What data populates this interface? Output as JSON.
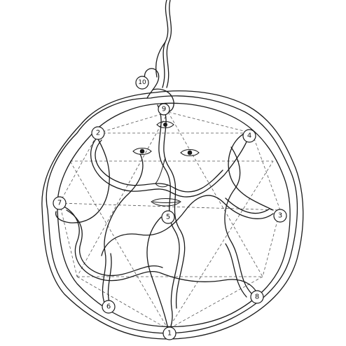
{
  "diagram": {
    "nodes": [
      {
        "id": "node-1",
        "label": "1"
      },
      {
        "id": "node-2",
        "label": "2"
      },
      {
        "id": "node-3",
        "label": "3"
      },
      {
        "id": "node-4",
        "label": "4"
      },
      {
        "id": "node-5",
        "label": "5"
      },
      {
        "id": "node-6",
        "label": "6"
      },
      {
        "id": "node-7",
        "label": "7"
      },
      {
        "id": "node-8",
        "label": "8"
      },
      {
        "id": "node-9",
        "label": "9"
      },
      {
        "id": "node-10",
        "label": "10"
      }
    ]
  }
}
